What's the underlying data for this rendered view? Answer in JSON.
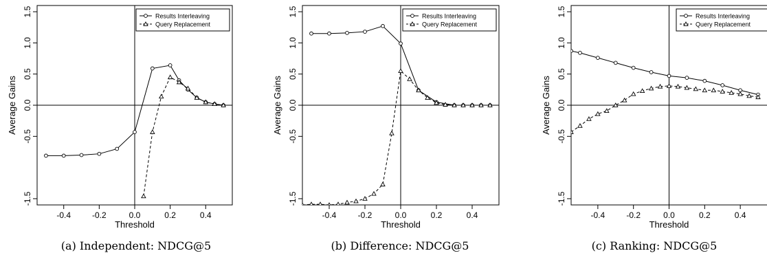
{
  "figure": {
    "captions": [
      "(a) Independent: NDCG@5",
      "(b) Difference: NDCG@5",
      "(c) Ranking: NDCG@5"
    ]
  },
  "chart_data": [
    {
      "type": "line",
      "title": "",
      "xlabel": "Threshold",
      "ylabel": "Average Gains",
      "xlim": [
        -0.55,
        0.55
      ],
      "ylim": [
        -1.6,
        1.6
      ],
      "xticks": [
        "-0.4",
        "-0.2",
        "0.0",
        "0.2",
        "0.4"
      ],
      "yticks": [
        "-1.5",
        "-0.5",
        "0.0",
        "0.5",
        "1.0",
        "1.5"
      ],
      "ytick_values": [
        -1.5,
        -0.5,
        0.0,
        0.5,
        1.0,
        1.5
      ],
      "xtick_values": [
        -0.4,
        -0.2,
        0.0,
        0.2,
        0.4
      ],
      "legend": "top-right",
      "series": [
        {
          "name": "Results Interleaving",
          "marker": "circle",
          "dash": "solid",
          "x": [
            -0.5,
            -0.4,
            -0.3,
            -0.2,
            -0.1,
            0.0,
            0.1,
            0.2,
            0.25,
            0.3,
            0.35,
            0.4,
            0.45,
            0.5
          ],
          "y": [
            -0.81,
            -0.81,
            -0.8,
            -0.78,
            -0.7,
            -0.43,
            0.59,
            0.64,
            0.4,
            0.25,
            0.12,
            0.05,
            0.02,
            0.0
          ]
        },
        {
          "name": "Query Replacement",
          "marker": "triangle",
          "dash": "dashed",
          "x": [
            0.05,
            0.1,
            0.15,
            0.2,
            0.25,
            0.3,
            0.35,
            0.4,
            0.45,
            0.5
          ],
          "y": [
            -1.46,
            -0.43,
            0.14,
            0.45,
            0.37,
            0.27,
            0.12,
            0.05,
            0.02,
            0.0
          ]
        }
      ]
    },
    {
      "type": "line",
      "title": "",
      "xlabel": "Threshold",
      "ylabel": "Average Gains",
      "xlim": [
        -0.55,
        0.55
      ],
      "ylim": [
        -1.6,
        1.6
      ],
      "xticks": [
        "-0.4",
        "-0.2",
        "0.0",
        "0.2",
        "0.4"
      ],
      "yticks": [
        "-1.5",
        "-0.5",
        "0.0",
        "0.5",
        "1.0",
        "1.5"
      ],
      "ytick_values": [
        -1.5,
        -0.5,
        0.0,
        0.5,
        1.0,
        1.5
      ],
      "xtick_values": [
        -0.4,
        -0.2,
        0.0,
        0.2,
        0.4
      ],
      "legend": "top-right",
      "series": [
        {
          "name": "Results Interleaving",
          "marker": "circle",
          "dash": "solid",
          "x": [
            -0.5,
            -0.4,
            -0.3,
            -0.2,
            -0.1,
            0.0,
            0.1,
            0.2,
            0.3,
            0.35,
            0.4,
            0.45,
            0.5
          ],
          "y": [
            1.15,
            1.15,
            1.16,
            1.18,
            1.27,
            0.99,
            0.24,
            0.05,
            0.0,
            0.0,
            0.0,
            0.0,
            0.0
          ]
        },
        {
          "name": "Query Replacement",
          "marker": "triangle",
          "dash": "dashed",
          "x": [
            -0.55,
            -0.5,
            -0.45,
            -0.4,
            -0.35,
            -0.3,
            -0.25,
            -0.2,
            -0.15,
            -0.1,
            -0.05,
            0.0,
            0.05,
            0.1,
            0.15,
            0.2,
            0.25,
            0.3,
            0.35,
            0.4,
            0.45,
            0.5
          ],
          "y": [
            -1.6,
            -1.59,
            -1.59,
            -1.6,
            -1.59,
            -1.56,
            -1.54,
            -1.5,
            -1.42,
            -1.27,
            -0.45,
            0.55,
            0.42,
            0.24,
            0.12,
            0.04,
            0.01,
            0.0,
            0.0,
            0.0,
            0.0,
            0.0
          ]
        }
      ]
    },
    {
      "type": "line",
      "title": "",
      "xlabel": "Threshold",
      "ylabel": "Average Gains",
      "xlim": [
        -0.55,
        0.55
      ],
      "ylim": [
        -1.6,
        1.6
      ],
      "xticks": [
        "-0.4",
        "-0.2",
        "0.0",
        "0.2",
        "0.4"
      ],
      "yticks": [
        "-1.5",
        "-0.5",
        "0.0",
        "0.5",
        "1.0",
        "1.5"
      ],
      "ytick_values": [
        -1.5,
        -0.5,
        0.0,
        0.5,
        1.0,
        1.5
      ],
      "xtick_values": [
        -0.4,
        -0.2,
        0.0,
        0.2,
        0.4
      ],
      "legend": "top-right",
      "series": [
        {
          "name": "Results Interleaving",
          "marker": "circle",
          "dash": "solid",
          "x": [
            -0.55,
            -0.5,
            -0.4,
            -0.3,
            -0.2,
            -0.1,
            0.0,
            0.1,
            0.2,
            0.3,
            0.4,
            0.5
          ],
          "y": [
            0.87,
            0.84,
            0.76,
            0.68,
            0.6,
            0.53,
            0.47,
            0.44,
            0.39,
            0.32,
            0.24,
            0.17
          ]
        },
        {
          "name": "Query Replacement",
          "marker": "triangle",
          "dash": "dashed",
          "x": [
            -0.55,
            -0.5,
            -0.45,
            -0.4,
            -0.35,
            -0.3,
            -0.25,
            -0.2,
            -0.15,
            -0.1,
            -0.05,
            0.0,
            0.05,
            0.1,
            0.15,
            0.2,
            0.25,
            0.3,
            0.35,
            0.4,
            0.45,
            0.5
          ],
          "y": [
            -0.43,
            -0.33,
            -0.22,
            -0.14,
            -0.09,
            0.0,
            0.08,
            0.18,
            0.23,
            0.27,
            0.3,
            0.31,
            0.3,
            0.28,
            0.26,
            0.24,
            0.24,
            0.22,
            0.2,
            0.18,
            0.15,
            0.13
          ]
        }
      ]
    }
  ]
}
